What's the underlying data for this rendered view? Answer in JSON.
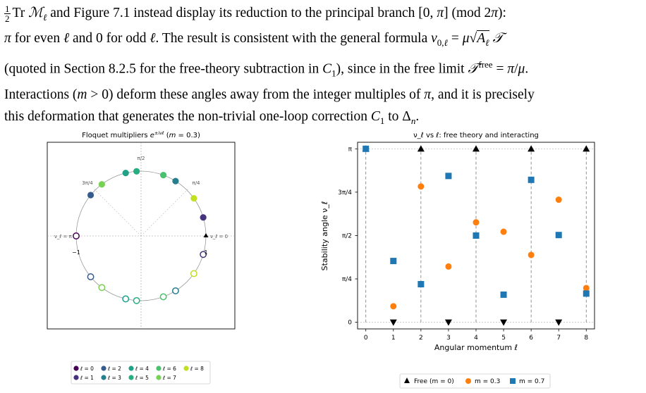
{
  "text": {
    "lines": [
      "½ Tr ℳ_ℓ and Figure 7.1 instead display its reduction to the principal branch [0, π] (mod 2π):",
      "π for even ℓ and 0 for odd ℓ. The result is consistent with the general formula ν_{0,ℓ} = μ√(A_ℓ) 𝒯",
      "(quoted in Section 8.2.5 for the free-theory subtraction in C₁), since in the free limit 𝒯^free = π/μ.",
      "Interactions (m > 0) deform these angles away from the integer multiples of π, and it is precisely",
      "this deformation that generates the non-trivial one-loop correction C₁ to Δₙ."
    ]
  },
  "left_panel": {
    "title": "Floquet multipliers e^{±iν_ℓ} (m = 0.3)",
    "angle_labels": [
      "π/2",
      "3π/4",
      "π/4",
      "ν_ℓ = π",
      "ν_ℓ = 0"
    ],
    "tick_labels": [
      "−1",
      "1"
    ],
    "legend": [
      "ℓ = 0",
      "ℓ = 1",
      "ℓ = 2",
      "ℓ = 3",
      "ℓ = 4",
      "ℓ = 5",
      "ℓ = 6",
      "ℓ = 7",
      "ℓ = 8"
    ],
    "colors": [
      "#440154",
      "#46337e",
      "#365c8d",
      "#277f8e",
      "#1fa187",
      "#26ad81",
      "#4ac16d",
      "#77d153",
      "#c2df23"
    ]
  },
  "right_panel": {
    "title": "ν_ℓ vs ℓ: free theory and interacting",
    "xlabel": "Angular momentum ℓ",
    "ylabel": "Stability angle ν_ℓ",
    "ytick_labels": [
      "0",
      "π/4",
      "π/2",
      "3π/4",
      "π"
    ],
    "legend": [
      "Free (m = 0)",
      "m = 0.3",
      "m = 0.7"
    ],
    "colors": {
      "free": "#000000",
      "m03": "#ff7f0e",
      "m07": "#1f77b4"
    }
  },
  "chart_data": {
    "type": "scatter",
    "x": [
      0,
      1,
      2,
      3,
      4,
      5,
      6,
      7,
      8
    ],
    "series": [
      {
        "name": "Free (m = 0)",
        "values": [
          3.1416,
          0,
          3.1416,
          0,
          3.1416,
          0,
          3.1416,
          0,
          3.1416
        ]
      },
      {
        "name": "m = 0.3",
        "values": [
          3.1416,
          0.29,
          2.46,
          1.01,
          1.81,
          1.64,
          1.22,
          2.22,
          0.62
        ]
      },
      {
        "name": "m = 0.7",
        "values": [
          3.1416,
          1.11,
          0.69,
          2.65,
          1.57,
          0.5,
          2.58,
          1.58,
          0.52
        ]
      }
    ],
    "xlim": [
      -0.3,
      8.3
    ],
    "ylim": [
      -0.12,
      3.26
    ],
    "xlabel": "Angular momentum ℓ",
    "ylabel": "Stability angle ν_ℓ",
    "title": "ν_ℓ vs ℓ: free theory and interacting",
    "legend_position": "bottom"
  }
}
